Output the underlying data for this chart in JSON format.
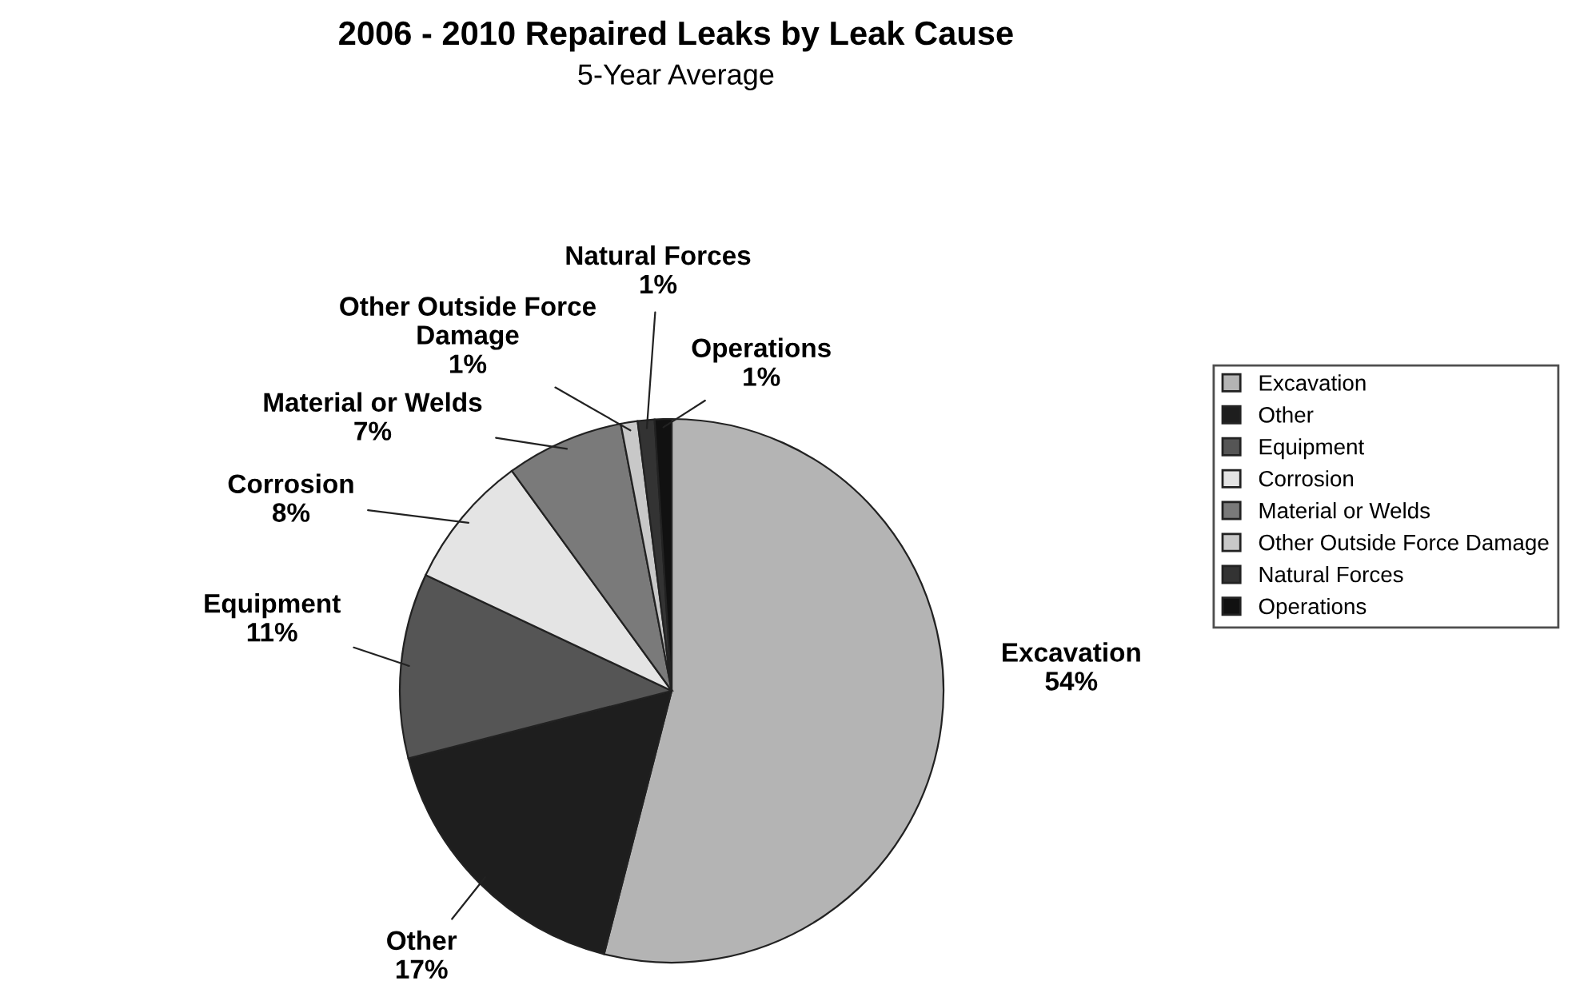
{
  "chart_data": {
    "type": "pie",
    "title": "2006 - 2010 Repaired Leaks by Leak Cause",
    "subtitle": "5-Year Average",
    "categories": [
      "Excavation",
      "Other",
      "Equipment",
      "Corrosion",
      "Material or Welds",
      "Other Outside Force Damage",
      "Natural Forces",
      "Operations"
    ],
    "values": [
      54,
      17,
      11,
      8,
      7,
      1,
      1,
      1
    ],
    "value_labels": [
      "54%",
      "17%",
      "11%",
      "8%",
      "7%",
      "1%",
      "1%",
      "1%"
    ],
    "colors": [
      "#b4b4b4",
      "#1e1e1e",
      "#555555",
      "#e4e4e4",
      "#7a7a7a",
      "#c8c8c8",
      "#333333",
      "#111111"
    ],
    "legend": "right"
  }
}
